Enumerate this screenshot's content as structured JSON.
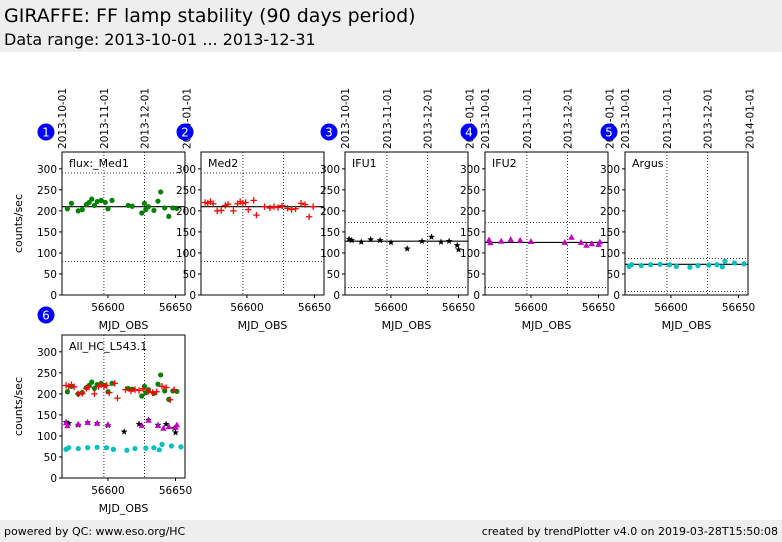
{
  "header": {
    "title": "GIRAFFE: FF lamp stability (90 days period)",
    "subtitle": "Data range: 2013-10-01 ... 2013-12-31"
  },
  "footer": {
    "left": "powered by QC: www.eso.org/HC",
    "right": "created by trendPlotter v4.0 on 2019-03-28T15:50:08"
  },
  "colors": {
    "green": "#008000",
    "red": "#ff0000",
    "black": "#000000",
    "magenta": "#bf00bf",
    "cyan": "#00bfbf"
  },
  "chart_data": [
    {
      "type": "scatter",
      "panel_number": "1",
      "label": "flux:_Med1",
      "xlabel": "MJD_OBS",
      "ylabel": "counts/sec",
      "xlim": [
        56566,
        56657
      ],
      "ylim": [
        0,
        340
      ],
      "xticks": [
        56600,
        56650
      ],
      "yticks": [
        0,
        50,
        100,
        150,
        200,
        250,
        300
      ],
      "date_ticks": [
        {
          "x": 56566,
          "label": "2013-10-01"
        },
        {
          "x": 56597,
          "label": "2013-11-01"
        },
        {
          "x": 56627,
          "label": "2013-12-01"
        },
        {
          "x": 56658,
          "label": "2014-01-01"
        }
      ],
      "hlines": [
        {
          "y": 210,
          "style": "solid"
        },
        {
          "y": 290,
          "style": "dotted"
        },
        {
          "y": 80,
          "style": "dotted"
        }
      ],
      "vlines": [
        56597,
        56627
      ],
      "series": [
        {
          "marker": "dot",
          "color": "#008000",
          "points": [
            [
              56570,
              205
            ],
            [
              56573,
              218
            ],
            [
              56578,
              200
            ],
            [
              56581,
              203
            ],
            [
              56584,
              215
            ],
            [
              56586,
              220
            ],
            [
              56588,
              228
            ],
            [
              56590,
              213
            ],
            [
              56592,
              222
            ],
            [
              56595,
              225
            ],
            [
              56598,
              220
            ],
            [
              56600,
              205
            ],
            [
              56603,
              225
            ],
            [
              56615,
              213
            ],
            [
              56618,
              211
            ],
            [
              56625,
              195
            ],
            [
              56627,
              218
            ],
            [
              56628,
              203
            ],
            [
              56630,
              210
            ],
            [
              56634,
              201
            ],
            [
              56637,
              223
            ],
            [
              56639,
              245
            ],
            [
              56642,
              207
            ],
            [
              56645,
              187
            ],
            [
              56648,
              207
            ],
            [
              56651,
              206
            ]
          ]
        }
      ]
    },
    {
      "type": "scatter",
      "panel_number": "2",
      "label": "Med2",
      "xlabel": "MJD_OBS",
      "ylabel": "",
      "xlim": [
        56566,
        56657
      ],
      "ylim": [
        0,
        340
      ],
      "xticks": [
        56600,
        56650
      ],
      "yticks": [
        0,
        50,
        100,
        150,
        200,
        250,
        300
      ],
      "date_ticks": [],
      "hlines": [
        {
          "y": 210,
          "style": "solid"
        },
        {
          "y": 290,
          "style": "dotted"
        },
        {
          "y": 80,
          "style": "dotted"
        }
      ],
      "vlines": [
        56597,
        56627
      ],
      "series": [
        {
          "marker": "plus",
          "color": "#ff0000",
          "points": [
            [
              56569,
              220
            ],
            [
              56571,
              218
            ],
            [
              56573,
              222
            ],
            [
              56575,
              217
            ],
            [
              56578,
              200
            ],
            [
              56581,
              201
            ],
            [
              56584,
              213
            ],
            [
              56586,
              216
            ],
            [
              56590,
              200
            ],
            [
              56593,
              217
            ],
            [
              56595,
              222
            ],
            [
              56597,
              218
            ],
            [
              56599,
              220
            ],
            [
              56601,
              203
            ],
            [
              56605,
              225
            ],
            [
              56607,
              190
            ],
            [
              56613,
              210
            ],
            [
              56617,
              207
            ],
            [
              56620,
              210
            ],
            [
              56623,
              208
            ],
            [
              56626,
              212
            ],
            [
              56630,
              206
            ],
            [
              56633,
              203
            ],
            [
              56636,
              205
            ],
            [
              56640,
              218
            ],
            [
              56643,
              215
            ],
            [
              56646,
              186
            ],
            [
              56649,
              210
            ]
          ]
        }
      ]
    },
    {
      "type": "scatter",
      "panel_number": "3",
      "label": "IFU1",
      "xlabel": "MJD_OBS",
      "ylabel": "",
      "xlim": [
        56566,
        56657
      ],
      "ylim": [
        0,
        340
      ],
      "xticks": [
        56600,
        56650
      ],
      "yticks": [
        0,
        50,
        100,
        150,
        200,
        250,
        300
      ],
      "date_ticks": [
        {
          "x": 56566,
          "label": "2013-10-01"
        },
        {
          "x": 56597,
          "label": "2013-11-01"
        },
        {
          "x": 56627,
          "label": "2013-12-01"
        },
        {
          "x": 56658,
          "label": "2014-01-01"
        }
      ],
      "hlines": [
        {
          "y": 128,
          "style": "solid"
        },
        {
          "y": 172,
          "style": "dotted"
        },
        {
          "y": 18,
          "style": "dotted"
        }
      ],
      "vlines": [
        56597,
        56627
      ],
      "series": [
        {
          "marker": "star",
          "color": "#000000",
          "points": [
            [
              56569,
              133
            ],
            [
              56571,
              130
            ],
            [
              56578,
              126
            ],
            [
              56585,
              132
            ],
            [
              56592,
              130
            ],
            [
              56600,
              125
            ],
            [
              56612,
              110
            ],
            [
              56623,
              128
            ],
            [
              56630,
              138
            ],
            [
              56637,
              126
            ],
            [
              56643,
              128
            ],
            [
              56649,
              118
            ],
            [
              56650,
              108
            ]
          ]
        }
      ]
    },
    {
      "type": "scatter",
      "panel_number": "4",
      "label": "IFU2",
      "xlabel": "MJD_OBS",
      "ylabel": "",
      "xlim": [
        56566,
        56657
      ],
      "ylim": [
        0,
        340
      ],
      "xticks": [
        56600,
        56650
      ],
      "yticks": [
        0,
        50,
        100,
        150,
        200,
        250,
        300
      ],
      "date_ticks": [
        {
          "x": 56566,
          "label": "2013-10-01"
        },
        {
          "x": 56597,
          "label": "2013-11-01"
        },
        {
          "x": 56627,
          "label": "2013-12-01"
        },
        {
          "x": 56658,
          "label": "2014-01-01"
        }
      ],
      "hlines": [
        {
          "y": 125,
          "style": "solid"
        },
        {
          "y": 172,
          "style": "dotted"
        },
        {
          "y": 18,
          "style": "dotted"
        }
      ],
      "vlines": [
        56597,
        56627
      ],
      "series": [
        {
          "marker": "triangle",
          "color": "#bf00bf",
          "points": [
            [
              56569,
              131
            ],
            [
              56570,
              124
            ],
            [
              56578,
              128
            ],
            [
              56585,
              132
            ],
            [
              56592,
              130
            ],
            [
              56600,
              127
            ],
            [
              56625,
              125
            ],
            [
              56630,
              137
            ],
            [
              56637,
              125
            ],
            [
              56641,
              118
            ],
            [
              56645,
              122
            ],
            [
              56650,
              120
            ],
            [
              56651,
              126
            ]
          ]
        }
      ]
    },
    {
      "type": "scatter",
      "panel_number": "5",
      "label": "Argus",
      "xlabel": "MJD_OBS",
      "ylabel": "",
      "xlim": [
        56566,
        56657
      ],
      "ylim": [
        0,
        340
      ],
      "xticks": [
        56600,
        56650
      ],
      "yticks": [
        0,
        50,
        100,
        150,
        200,
        250,
        300
      ],
      "date_ticks": [
        {
          "x": 56566,
          "label": "2013-10-01"
        },
        {
          "x": 56597,
          "label": "2013-11-01"
        },
        {
          "x": 56627,
          "label": "2013-12-01"
        },
        {
          "x": 56658,
          "label": "2014-01-01"
        }
      ],
      "hlines": [
        {
          "y": 73,
          "style": "solid"
        },
        {
          "y": 87,
          "style": "dotted"
        },
        {
          "y": 8,
          "style": "dotted"
        }
      ],
      "vlines": [
        56597,
        56627
      ],
      "series": [
        {
          "marker": "dot",
          "color": "#00bfbf",
          "points": [
            [
              56569,
              68
            ],
            [
              56571,
              72
            ],
            [
              56578,
              70
            ],
            [
              56585,
              72
            ],
            [
              56592,
              73
            ],
            [
              56599,
              72
            ],
            [
              56604,
              68
            ],
            [
              56614,
              66
            ],
            [
              56620,
              70
            ],
            [
              56628,
              71
            ],
            [
              56634,
              72
            ],
            [
              56638,
              67
            ],
            [
              56640,
              80
            ],
            [
              56647,
              76
            ],
            [
              56654,
              74
            ]
          ]
        }
      ]
    },
    {
      "type": "scatter",
      "panel_number": "6",
      "label": "All_HC_L543.1",
      "xlabel": "MJD_OBS",
      "ylabel": "counts/sec",
      "xlim": [
        56566,
        56657
      ],
      "ylim": [
        0,
        340
      ],
      "xticks": [
        56600,
        56650
      ],
      "yticks": [
        0,
        50,
        100,
        150,
        200,
        250,
        300
      ],
      "date_ticks": [],
      "hlines": [],
      "vlines": [
        56597,
        56627
      ],
      "series": [
        {
          "marker": "dot",
          "color": "#008000",
          "points": [
            [
              56570,
              205
            ],
            [
              56573,
              218
            ],
            [
              56578,
              200
            ],
            [
              56581,
              203
            ],
            [
              56584,
              215
            ],
            [
              56586,
              220
            ],
            [
              56588,
              228
            ],
            [
              56590,
              213
            ],
            [
              56592,
              222
            ],
            [
              56595,
              225
            ],
            [
              56598,
              220
            ],
            [
              56600,
              205
            ],
            [
              56603,
              225
            ],
            [
              56615,
              213
            ],
            [
              56618,
              211
            ],
            [
              56625,
              195
            ],
            [
              56627,
              218
            ],
            [
              56628,
              203
            ],
            [
              56630,
              210
            ],
            [
              56634,
              201
            ],
            [
              56637,
              223
            ],
            [
              56639,
              245
            ],
            [
              56642,
              207
            ],
            [
              56645,
              187
            ],
            [
              56648,
              207
            ],
            [
              56651,
              206
            ]
          ]
        },
        {
          "marker": "plus",
          "color": "#ff0000",
          "points": [
            [
              56569,
              220
            ],
            [
              56571,
              218
            ],
            [
              56573,
              222
            ],
            [
              56575,
              217
            ],
            [
              56578,
              200
            ],
            [
              56581,
              201
            ],
            [
              56584,
              213
            ],
            [
              56586,
              216
            ],
            [
              56590,
              200
            ],
            [
              56593,
              217
            ],
            [
              56595,
              222
            ],
            [
              56597,
              218
            ],
            [
              56599,
              220
            ],
            [
              56601,
              203
            ],
            [
              56605,
              225
            ],
            [
              56607,
              190
            ],
            [
              56613,
              210
            ],
            [
              56617,
              207
            ],
            [
              56620,
              210
            ],
            [
              56623,
              208
            ],
            [
              56626,
              212
            ],
            [
              56630,
              206
            ],
            [
              56633,
              203
            ],
            [
              56636,
              205
            ],
            [
              56640,
              218
            ],
            [
              56643,
              215
            ],
            [
              56646,
              186
            ],
            [
              56649,
              210
            ]
          ]
        },
        {
          "marker": "star",
          "color": "#000000",
          "points": [
            [
              56569,
              133
            ],
            [
              56571,
              130
            ],
            [
              56578,
              126
            ],
            [
              56585,
              132
            ],
            [
              56592,
              130
            ],
            [
              56600,
              125
            ],
            [
              56612,
              110
            ],
            [
              56623,
              128
            ],
            [
              56630,
              138
            ],
            [
              56637,
              126
            ],
            [
              56643,
              128
            ],
            [
              56649,
              118
            ],
            [
              56650,
              108
            ]
          ]
        },
        {
          "marker": "triangle",
          "color": "#bf00bf",
          "points": [
            [
              56569,
              131
            ],
            [
              56570,
              124
            ],
            [
              56578,
              128
            ],
            [
              56585,
              132
            ],
            [
              56592,
              130
            ],
            [
              56600,
              127
            ],
            [
              56625,
              125
            ],
            [
              56630,
              137
            ],
            [
              56637,
              125
            ],
            [
              56641,
              118
            ],
            [
              56645,
              122
            ],
            [
              56650,
              120
            ],
            [
              56651,
              126
            ]
          ]
        },
        {
          "marker": "dot",
          "color": "#00bfbf",
          "points": [
            [
              56569,
              68
            ],
            [
              56571,
              72
            ],
            [
              56578,
              70
            ],
            [
              56585,
              72
            ],
            [
              56592,
              73
            ],
            [
              56599,
              72
            ],
            [
              56604,
              68
            ],
            [
              56614,
              66
            ],
            [
              56620,
              70
            ],
            [
              56628,
              71
            ],
            [
              56634,
              72
            ],
            [
              56638,
              67
            ],
            [
              56640,
              80
            ],
            [
              56647,
              76
            ],
            [
              56654,
              74
            ]
          ]
        }
      ]
    }
  ]
}
